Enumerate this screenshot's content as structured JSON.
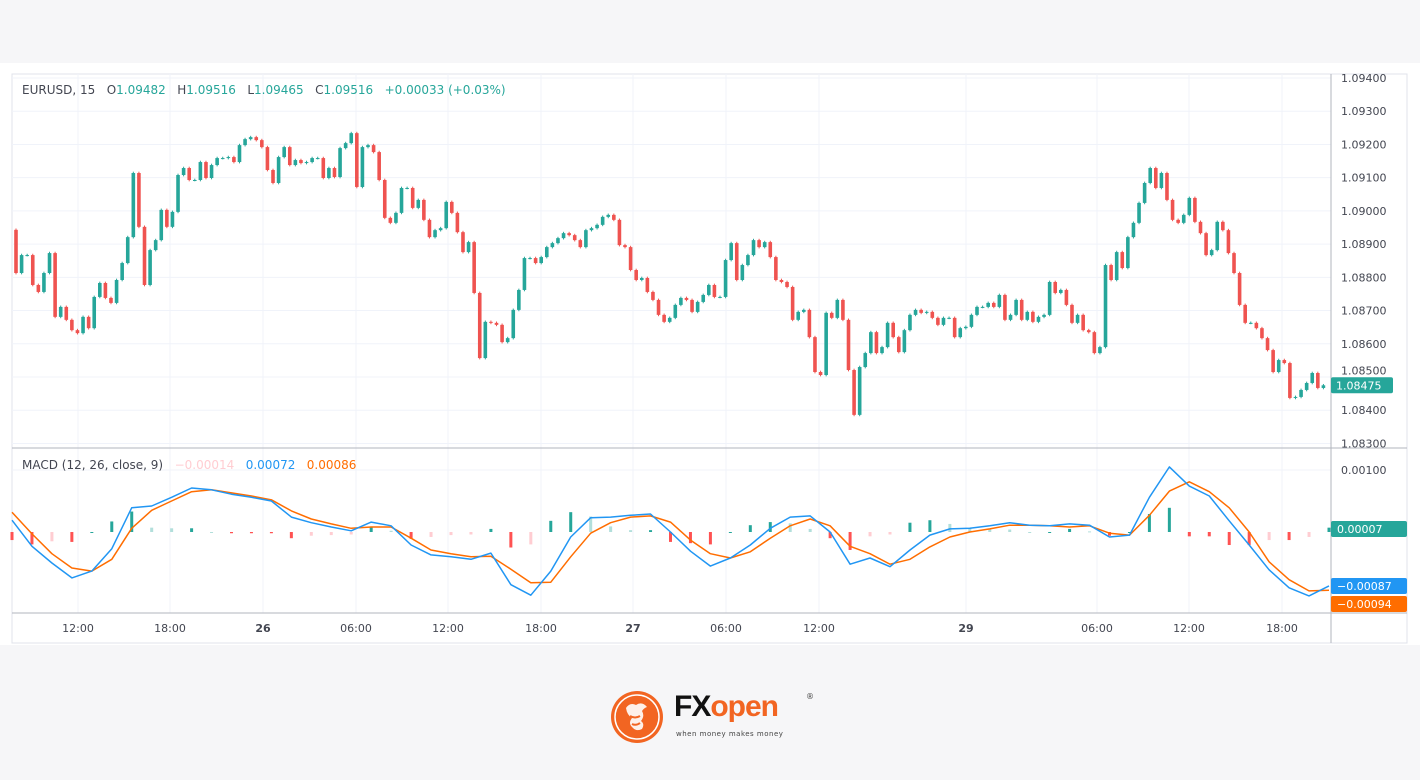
{
  "header": {
    "symbol": "EURUSD, 15",
    "open_label": "O",
    "open": "1.09482",
    "high_label": "H",
    "high": "1.09516",
    "low_label": "L",
    "low": "1.09465",
    "close_label": "C",
    "close": "1.09516",
    "change": "+0.00033 (+0.03%)"
  },
  "macd_legend": {
    "title": "MACD (12, 26, close, 9)",
    "histogram": "−0.00014",
    "macd": "0.00072",
    "signal": "0.00086"
  },
  "colors": {
    "up": "#26a69a",
    "down": "#ef5350",
    "hist_up_strong": "#26a69a",
    "hist_up_weak": "#b2dfdb",
    "hist_down_strong": "#ff5252",
    "hist_down_weak": "#ffcdd2",
    "macd_line": "#2196f3",
    "signal_line": "#ff6d00",
    "brand": "#f26522"
  },
  "logo": {
    "fx": "FX",
    "open": "open",
    "tagline": "when money   makes money",
    "registered": "®"
  },
  "chart_data": [
    {
      "type": "candlestick",
      "title": "EURUSD, 15",
      "ylim": [
        1.083,
        1.094
      ],
      "y_ticks": [
        "1.09400",
        "1.09300",
        "1.09200",
        "1.09100",
        "1.09000",
        "1.08900",
        "1.08800",
        "1.08700",
        "1.08600",
        "1.08500",
        "1.08400",
        "1.08300"
      ],
      "x_ticks": [
        {
          "label": "12:00",
          "bold": false
        },
        {
          "label": "18:00",
          "bold": false
        },
        {
          "label": "26",
          "bold": true
        },
        {
          "label": "06:00",
          "bold": false
        },
        {
          "label": "12:00",
          "bold": false
        },
        {
          "label": "18:00",
          "bold": false
        },
        {
          "label": "27",
          "bold": true
        },
        {
          "label": "06:00",
          "bold": false
        },
        {
          "label": "12:00",
          "bold": false
        },
        {
          "label": "29",
          "bold": true
        },
        {
          "label": "06:00",
          "bold": false
        },
        {
          "label": "12:00",
          "bold": false
        },
        {
          "label": "18:00",
          "bold": false
        }
      ],
      "grid": true,
      "first_open": 1.08943,
      "last_price_label": "1.08475",
      "closes": [
        1.08813,
        1.08867,
        1.08867,
        1.08777,
        1.08756,
        1.08813,
        1.08873,
        1.08681,
        1.08711,
        1.08672,
        1.08641,
        1.08632,
        1.08681,
        1.08647,
        1.08741,
        1.08783,
        1.08738,
        1.08723,
        1.08792,
        1.08843,
        1.08921,
        1.09114,
        1.08952,
        1.08777,
        1.08882,
        1.08912,
        1.09003,
        1.08952,
        1.08997,
        1.09108,
        1.09129,
        1.09093,
        1.09093,
        1.09147,
        1.09099,
        1.09138,
        1.09159,
        1.09159,
        1.09162,
        1.09147,
        1.09198,
        1.09216,
        1.09222,
        1.09213,
        1.09192,
        1.09123,
        1.09084,
        1.09162,
        1.09192,
        1.09138,
        1.09153,
        1.09144,
        1.09147,
        1.09159,
        1.09159,
        1.09099,
        1.09129,
        1.09102,
        1.09189,
        1.09204,
        1.09234,
        1.09072,
        1.09192,
        1.09198,
        1.09177,
        1.09093,
        1.08979,
        1.08964,
        1.08994,
        1.09069,
        1.09069,
        1.09009,
        1.09033,
        1.08973,
        1.08921,
        1.08942,
        1.08948,
        1.09027,
        1.08994,
        1.08936,
        1.08876,
        1.08906,
        1.08753,
        1.08557,
        1.08666,
        1.08663,
        1.08657,
        1.08605,
        1.08617,
        1.08702,
        1.08762,
        1.08858,
        1.08858,
        1.08843,
        1.08861,
        1.08891,
        1.08903,
        1.08918,
        1.08933,
        1.08927,
        1.08912,
        1.08891,
        1.08942,
        1.08948,
        1.08958,
        1.08982,
        1.08988,
        1.08973,
        1.08897,
        1.08891,
        1.08822,
        1.08792,
        1.08798,
        1.08756,
        1.08732,
        1.08687,
        1.08666,
        1.08678,
        1.08717,
        1.08738,
        1.08732,
        1.08696,
        1.08726,
        1.08747,
        1.08777,
        1.08741,
        1.08741,
        1.08852,
        1.08903,
        1.08792,
        1.08837,
        1.08867,
        1.08912,
        1.08891,
        1.08906,
        1.08861,
        1.08792,
        1.08786,
        1.08771,
        1.08672,
        1.08696,
        1.08702,
        1.0862,
        1.08515,
        1.08506,
        1.08693,
        1.08678,
        1.08732,
        1.08672,
        1.08521,
        1.08386,
        1.0853,
        1.08572,
        1.08635,
        1.08572,
        1.0859,
        1.08663,
        1.0862,
        1.08575,
        1.08641,
        1.08687,
        1.08702,
        1.08693,
        1.08696,
        1.08678,
        1.08657,
        1.08678,
        1.08678,
        1.0862,
        1.08647,
        1.08651,
        1.08687,
        1.08711,
        1.08711,
        1.08723,
        1.08711,
        1.08747,
        1.08672,
        1.08687,
        1.08732,
        1.08672,
        1.08696,
        1.08666,
        1.08681,
        1.08687,
        1.08786,
        1.08753,
        1.08762,
        1.08717,
        1.08663,
        1.08687,
        1.08641,
        1.08635,
        1.08572,
        1.0859,
        1.08837,
        1.08792,
        1.08876,
        1.08828,
        1.08921,
        1.08964,
        1.09024,
        1.09084,
        1.09129,
        1.09069,
        1.09114,
        1.09033,
        1.08973,
        1.08964,
        1.08988,
        1.09039,
        1.08967,
        1.08933,
        1.08867,
        1.08882,
        1.08967,
        1.08942,
        1.08873,
        1.08813,
        1.08717,
        1.08663,
        1.08663,
        1.08647,
        1.08617,
        1.08581,
        1.08515,
        1.08551,
        1.08542,
        1.08437,
        1.0844,
        1.08461,
        1.08482,
        1.08512,
        1.08467,
        1.08475
      ]
    },
    {
      "type": "line",
      "title": "MACD (12, 26, close, 9)",
      "ylim": [
        -0.00128,
        0.0013
      ],
      "y_ticks": [
        "0.00100"
      ],
      "zero_line": true,
      "last_labels": {
        "histogram": "0.00007",
        "macd": "−0.00087",
        "signal": "−0.00094"
      },
      "macd": [
        0.00019,
        -0.00023,
        -0.0005,
        -0.00074,
        -0.00063,
        -0.00027,
        0.00039,
        0.00042,
        0.00056,
        0.00071,
        0.00068,
        0.00061,
        0.00056,
        0.0005,
        0.00024,
        0.00015,
        8e-05,
        2e-05,
        0.00016,
        0.0001,
        -0.00021,
        -0.00037,
        -0.0004,
        -0.00044,
        -0.00034,
        -0.00085,
        -0.00102,
        -0.00063,
        -8e-05,
        0.00023,
        0.00024,
        0.00027,
        0.00029,
        0.0,
        -0.00031,
        -0.00055,
        -0.00042,
        -0.00021,
        6e-05,
        0.00024,
        0.00026,
        0.0,
        -0.00052,
        -0.00042,
        -0.00056,
        -0.00029,
        -5e-05,
        5e-05,
        6e-05,
        0.0001,
        0.00015,
        0.00011,
        0.0001,
        0.00013,
        0.00011,
        -8e-05,
        -5e-05,
        0.00056,
        0.00105,
        0.00074,
        0.00058,
        0.00018,
        -0.00021,
        -0.00061,
        -0.0009,
        -0.00103,
        -0.00087
      ],
      "signal": [
        0.00032,
        -3e-05,
        -0.00035,
        -0.00058,
        -0.00063,
        -0.00044,
        6e-05,
        0.00035,
        0.0005,
        0.00065,
        0.00068,
        0.00063,
        0.00058,
        0.00052,
        0.00034,
        0.00021,
        0.00013,
        6e-05,
        8e-05,
        8e-05,
        -0.0001,
        -0.00029,
        -0.00035,
        -0.0004,
        -0.00039,
        -0.0006,
        -0.00082,
        -0.00081,
        -0.0004,
        -2e-05,
        0.00015,
        0.00024,
        0.00026,
        0.00016,
        -0.00013,
        -0.00035,
        -0.00042,
        -0.00032,
        -0.0001,
        0.0001,
        0.00021,
        0.0001,
        -0.00023,
        -0.00035,
        -0.00052,
        -0.00044,
        -0.00024,
        -8e-05,
        0.0,
        5e-05,
        0.00011,
        0.00011,
        0.0001,
        8e-05,
        0.0001,
        -2e-05,
        -5e-05,
        0.00027,
        0.00066,
        0.00081,
        0.00065,
        0.00039,
        0.0,
        -0.00048,
        -0.00077,
        -0.00095,
        -0.00094
      ],
      "histogram": [
        -0.00013,
        -0.0002,
        -0.00015,
        -0.00016,
        0.0,
        0.00017,
        0.00033,
        7e-05,
        6e-05,
        6e-05,
        0.0,
        -2e-05,
        -2e-05,
        -2e-05,
        -0.0001,
        -6e-05,
        -5e-05,
        -4e-05,
        8e-05,
        2e-05,
        -0.00011,
        -8e-05,
        -5e-05,
        -4e-05,
        5e-05,
        -0.00025,
        -0.0002,
        0.00018,
        0.00032,
        0.00025,
        9e-05,
        3e-05,
        3e-05,
        -0.00016,
        -0.00018,
        -0.0002,
        0.0,
        0.00011,
        0.00016,
        0.00014,
        5e-05,
        -0.0001,
        -0.00029,
        -7e-05,
        -4e-05,
        0.00015,
        0.00019,
        0.00013,
        6e-05,
        5e-05,
        4e-05,
        0.0,
        0.0,
        5e-05,
        1e-05,
        -6e-05,
        0.0,
        0.00029,
        0.00039,
        -7e-05,
        -7e-05,
        -0.00021,
        -0.00021,
        -0.00013,
        -0.00013,
        -8e-05,
        7e-05
      ]
    }
  ]
}
